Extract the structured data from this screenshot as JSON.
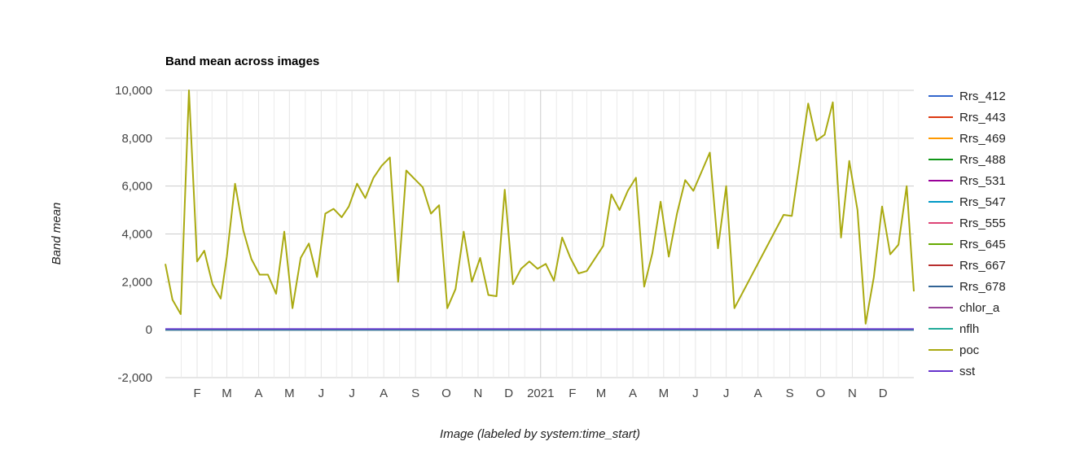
{
  "chart_data": {
    "type": "line",
    "title": "Band mean across images",
    "xlabel": "Image (labeled by system:time_start)",
    "ylabel": "Band mean",
    "ylim": [
      -2000,
      10000
    ],
    "yticks": [
      -2000,
      0,
      2000,
      4000,
      6000,
      8000,
      10000
    ],
    "ytick_labels": [
      "-2,000",
      "0",
      "2,000",
      "4,000",
      "6,000",
      "8,000",
      "10,000"
    ],
    "xlim": [
      "2020-01-01",
      "2021-12-31"
    ],
    "xticks": [
      {
        "label": "F",
        "date": "2020-02-01"
      },
      {
        "label": "M",
        "date": "2020-03-01"
      },
      {
        "label": "A",
        "date": "2020-04-01"
      },
      {
        "label": "M",
        "date": "2020-05-01"
      },
      {
        "label": "J",
        "date": "2020-06-01"
      },
      {
        "label": "J",
        "date": "2020-07-01"
      },
      {
        "label": "A",
        "date": "2020-08-01"
      },
      {
        "label": "S",
        "date": "2020-09-01"
      },
      {
        "label": "O",
        "date": "2020-10-01"
      },
      {
        "label": "N",
        "date": "2020-11-01"
      },
      {
        "label": "D",
        "date": "2020-12-01"
      },
      {
        "label": "2021",
        "date": "2021-01-01"
      },
      {
        "label": "F",
        "date": "2021-02-01"
      },
      {
        "label": "M",
        "date": "2021-03-01"
      },
      {
        "label": "A",
        "date": "2021-04-01"
      },
      {
        "label": "M",
        "date": "2021-05-01"
      },
      {
        "label": "J",
        "date": "2021-06-01"
      },
      {
        "label": "J",
        "date": "2021-07-01"
      },
      {
        "label": "A",
        "date": "2021-08-01"
      },
      {
        "label": "S",
        "date": "2021-09-01"
      },
      {
        "label": "O",
        "date": "2021-10-01"
      },
      {
        "label": "N",
        "date": "2021-11-01"
      },
      {
        "label": "D",
        "date": "2021-12-01"
      }
    ],
    "grid": true,
    "legend_position": "right",
    "series": [
      {
        "name": "Rrs_412",
        "color": "#3366cc",
        "x": [
          "2020-01-01",
          "2021-12-31"
        ],
        "values": [
          0,
          0
        ]
      },
      {
        "name": "Rrs_443",
        "color": "#dc3912",
        "x": [
          "2020-01-01",
          "2021-12-31"
        ],
        "values": [
          0,
          0
        ]
      },
      {
        "name": "Rrs_469",
        "color": "#ff9900",
        "x": [
          "2020-01-01",
          "2021-12-31"
        ],
        "values": [
          0,
          0
        ]
      },
      {
        "name": "Rrs_488",
        "color": "#109618",
        "x": [
          "2020-01-01",
          "2021-12-31"
        ],
        "values": [
          0,
          0
        ]
      },
      {
        "name": "Rrs_531",
        "color": "#990099",
        "x": [
          "2020-01-01",
          "2021-12-31"
        ],
        "values": [
          0,
          0
        ]
      },
      {
        "name": "Rrs_547",
        "color": "#0099c6",
        "x": [
          "2020-01-01",
          "2021-12-31"
        ],
        "values": [
          0,
          0
        ]
      },
      {
        "name": "Rrs_555",
        "color": "#dd4477",
        "x": [
          "2020-01-01",
          "2021-12-31"
        ],
        "values": [
          0,
          0
        ]
      },
      {
        "name": "Rrs_645",
        "color": "#66aa00",
        "x": [
          "2020-01-01",
          "2021-12-31"
        ],
        "values": [
          0,
          0
        ]
      },
      {
        "name": "Rrs_667",
        "color": "#b82e2e",
        "x": [
          "2020-01-01",
          "2021-12-31"
        ],
        "values": [
          0,
          0
        ]
      },
      {
        "name": "Rrs_678",
        "color": "#316395",
        "x": [
          "2020-01-01",
          "2021-12-31"
        ],
        "values": [
          0,
          0
        ]
      },
      {
        "name": "chlor_a",
        "color": "#994499",
        "x": [
          "2020-01-01",
          "2021-12-31"
        ],
        "values": [
          0,
          0
        ]
      },
      {
        "name": "nflh",
        "color": "#22aa99",
        "x": [
          "2020-01-01",
          "2021-12-31"
        ],
        "values": [
          0,
          0
        ]
      },
      {
        "name": "poc",
        "color": "#aaaa11",
        "x": [
          "2020-01-01",
          "2020-01-08",
          "2020-01-16",
          "2020-01-24",
          "2020-02-01",
          "2020-02-08",
          "2020-02-16",
          "2020-02-24",
          "2020-03-01",
          "2020-03-09",
          "2020-03-17",
          "2020-03-25",
          "2020-04-02",
          "2020-04-10",
          "2020-04-18",
          "2020-04-26",
          "2020-05-04",
          "2020-05-12",
          "2020-05-20",
          "2020-05-28",
          "2020-06-05",
          "2020-06-13",
          "2020-06-21",
          "2020-06-28",
          "2020-07-06",
          "2020-07-14",
          "2020-07-22",
          "2020-07-30",
          "2020-08-07",
          "2020-08-15",
          "2020-08-23",
          "2020-09-08",
          "2020-09-16",
          "2020-09-24",
          "2020-10-02",
          "2020-10-10",
          "2020-10-18",
          "2020-10-26",
          "2020-11-03",
          "2020-11-11",
          "2020-11-19",
          "2020-11-27",
          "2020-12-05",
          "2020-12-13",
          "2020-12-21",
          "2020-12-29",
          "2021-01-06",
          "2021-01-14",
          "2021-01-22",
          "2021-01-30",
          "2021-02-07",
          "2021-02-15",
          "2021-03-03",
          "2021-03-11",
          "2021-03-19",
          "2021-03-27",
          "2021-04-04",
          "2021-04-12",
          "2021-04-20",
          "2021-04-28",
          "2021-05-06",
          "2021-05-14",
          "2021-05-22",
          "2021-05-30",
          "2021-06-15",
          "2021-06-23",
          "2021-07-01",
          "2021-07-09",
          "2021-08-26",
          "2021-09-03",
          "2021-09-19",
          "2021-09-27",
          "2021-10-05",
          "2021-10-13",
          "2021-10-21",
          "2021-10-29",
          "2021-11-06",
          "2021-11-14",
          "2021-11-22",
          "2021-11-30",
          "2021-12-08",
          "2021-12-16",
          "2021-12-24",
          "2021-12-31"
        ],
        "values": [
          2750,
          1250,
          650,
          10000,
          2850,
          3300,
          1900,
          1300,
          3050,
          6100,
          4150,
          2950,
          2300,
          2300,
          1500,
          4100,
          900,
          3000,
          3600,
          2200,
          4850,
          5050,
          4700,
          5150,
          6100,
          5500,
          6350,
          6850,
          7200,
          2000,
          6650,
          5950,
          4850,
          5200,
          900,
          1700,
          4100,
          2000,
          3000,
          1450,
          1400,
          5850,
          1900,
          2550,
          2850,
          2550,
          2750,
          2050,
          3850,
          3000,
          2350,
          2450,
          3500,
          5650,
          5000,
          5800,
          6350,
          1800,
          3200,
          5350,
          3050,
          4850,
          6250,
          5800,
          7400,
          3400,
          6000,
          900,
          4800,
          4750,
          9450,
          7900,
          8150,
          9500,
          3850,
          7050,
          5000,
          250,
          2200,
          5150,
          3150,
          3550,
          6000,
          1600
        ]
      },
      {
        "name": "sst",
        "color": "#6633cc",
        "x": [
          "2020-01-01",
          "2021-12-31"
        ],
        "values": [
          25,
          25
        ]
      }
    ]
  }
}
